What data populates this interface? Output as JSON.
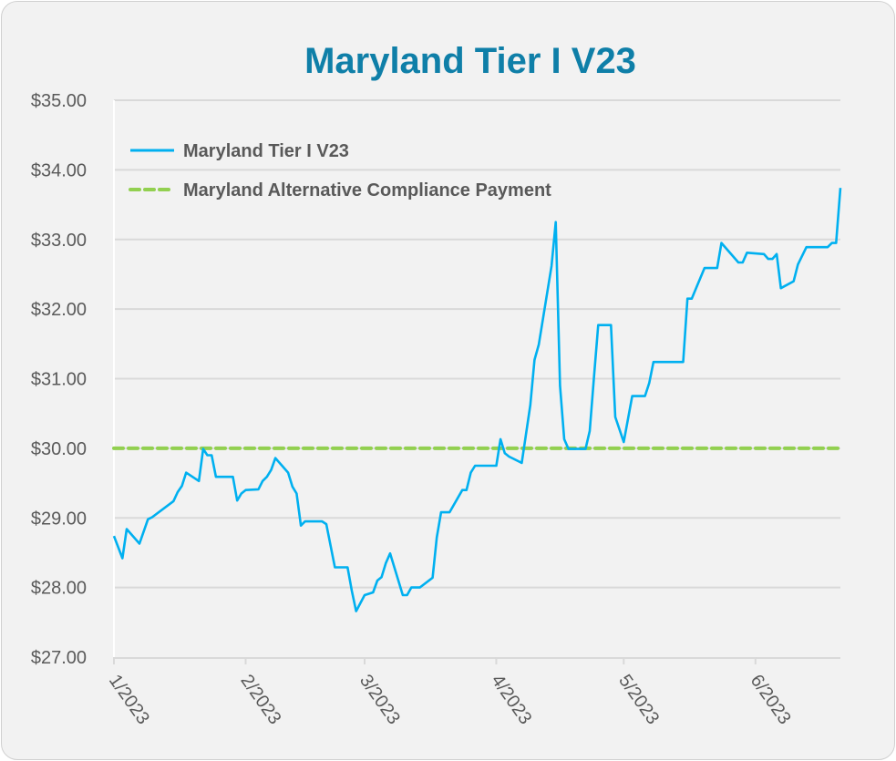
{
  "chart_data": {
    "type": "line",
    "title": "Maryland Tier I V23",
    "xlabel": "",
    "ylabel": "",
    "xlim": [
      "2023-01-01",
      "2023-06-21"
    ],
    "ylim": [
      27,
      35
    ],
    "y_ticks": [
      "$27.00",
      "$28.00",
      "$29.00",
      "$30.00",
      "$31.00",
      "$32.00",
      "$33.00",
      "$34.00",
      "$35.00"
    ],
    "x_ticks": [
      {
        "date": "2023-01-01",
        "label": "1/2023"
      },
      {
        "date": "2023-02-01",
        "label": "2/2023"
      },
      {
        "date": "2023-03-01",
        "label": "3/2023"
      },
      {
        "date": "2023-04-01",
        "label": "4/2023"
      },
      {
        "date": "2023-05-01",
        "label": "5/2023"
      },
      {
        "date": "2023-06-01",
        "label": "6/2023"
      }
    ],
    "grid": "horizontal",
    "legend_position": "top-left",
    "series": [
      {
        "name": "Maryland Tier I V23",
        "color": "#00b0f0",
        "style": "solid",
        "points": [
          [
            "2023-01-01",
            28.74
          ],
          [
            "2023-01-03",
            28.42
          ],
          [
            "2023-01-04",
            28.84
          ],
          [
            "2023-01-07",
            28.63
          ],
          [
            "2023-01-09",
            28.98
          ],
          [
            "2023-01-10",
            29.01
          ],
          [
            "2023-01-15",
            29.24
          ],
          [
            "2023-01-16",
            29.37
          ],
          [
            "2023-01-17",
            29.46
          ],
          [
            "2023-01-18",
            29.65
          ],
          [
            "2023-01-21",
            29.53
          ],
          [
            "2023-01-22",
            29.99
          ],
          [
            "2023-01-23",
            29.9
          ],
          [
            "2023-01-24",
            29.9
          ],
          [
            "2023-01-25",
            29.59
          ],
          [
            "2023-01-29",
            29.59
          ],
          [
            "2023-01-30",
            29.25
          ],
          [
            "2023-01-31",
            29.35
          ],
          [
            "2023-02-01",
            29.4
          ],
          [
            "2023-02-04",
            29.41
          ],
          [
            "2023-02-05",
            29.53
          ],
          [
            "2023-02-06",
            29.59
          ],
          [
            "2023-02-07",
            29.69
          ],
          [
            "2023-02-08",
            29.86
          ],
          [
            "2023-02-11",
            29.65
          ],
          [
            "2023-02-12",
            29.45
          ],
          [
            "2023-02-13",
            29.35
          ],
          [
            "2023-02-14",
            28.89
          ],
          [
            "2023-02-15",
            28.95
          ],
          [
            "2023-02-19",
            28.95
          ],
          [
            "2023-02-20",
            28.91
          ],
          [
            "2023-02-22",
            28.29
          ],
          [
            "2023-02-25",
            28.29
          ],
          [
            "2023-02-26",
            27.95
          ],
          [
            "2023-02-27",
            27.66
          ],
          [
            "2023-03-01",
            27.89
          ],
          [
            "2023-03-03",
            27.93
          ],
          [
            "2023-03-04",
            28.1
          ],
          [
            "2023-03-05",
            28.15
          ],
          [
            "2023-03-06",
            28.35
          ],
          [
            "2023-03-07",
            28.49
          ],
          [
            "2023-03-10",
            27.89
          ],
          [
            "2023-03-11",
            27.89
          ],
          [
            "2023-03-12",
            28.0
          ],
          [
            "2023-03-14",
            28.0
          ],
          [
            "2023-03-17",
            28.14
          ],
          [
            "2023-03-18",
            28.72
          ],
          [
            "2023-03-19",
            29.08
          ],
          [
            "2023-03-21",
            29.08
          ],
          [
            "2023-03-24",
            29.4
          ],
          [
            "2023-03-25",
            29.4
          ],
          [
            "2023-03-26",
            29.65
          ],
          [
            "2023-03-27",
            29.75
          ],
          [
            "2023-04-01",
            29.75
          ],
          [
            "2023-04-02",
            30.13
          ],
          [
            "2023-04-03",
            29.93
          ],
          [
            "2023-04-04",
            29.88
          ],
          [
            "2023-04-07",
            29.79
          ],
          [
            "2023-04-09",
            30.62
          ],
          [
            "2023-04-10",
            31.27
          ],
          [
            "2023-04-11",
            31.49
          ],
          [
            "2023-04-14",
            32.62
          ],
          [
            "2023-04-15",
            33.25
          ],
          [
            "2023-04-16",
            30.9
          ],
          [
            "2023-04-17",
            30.13
          ],
          [
            "2023-04-18",
            29.99
          ],
          [
            "2023-04-22",
            29.99
          ],
          [
            "2023-04-23",
            30.25
          ],
          [
            "2023-04-24",
            31.03
          ],
          [
            "2023-04-25",
            31.77
          ],
          [
            "2023-04-28",
            31.77
          ],
          [
            "2023-04-29",
            30.45
          ],
          [
            "2023-05-01",
            30.09
          ],
          [
            "2023-05-03",
            30.75
          ],
          [
            "2023-05-06",
            30.75
          ],
          [
            "2023-05-07",
            30.94
          ],
          [
            "2023-05-08",
            31.24
          ],
          [
            "2023-05-15",
            31.24
          ],
          [
            "2023-05-16",
            32.15
          ],
          [
            "2023-05-17",
            32.15
          ],
          [
            "2023-05-20",
            32.59
          ],
          [
            "2023-05-23",
            32.59
          ],
          [
            "2023-05-24",
            32.95
          ],
          [
            "2023-05-28",
            32.67
          ],
          [
            "2023-05-29",
            32.67
          ],
          [
            "2023-05-30",
            32.81
          ],
          [
            "2023-06-03",
            32.79
          ],
          [
            "2023-06-04",
            32.72
          ],
          [
            "2023-06-05",
            32.72
          ],
          [
            "2023-06-06",
            32.79
          ],
          [
            "2023-06-07",
            32.3
          ],
          [
            "2023-06-10",
            32.4
          ],
          [
            "2023-06-11",
            32.64
          ],
          [
            "2023-06-13",
            32.89
          ],
          [
            "2023-06-18",
            32.89
          ],
          [
            "2023-06-19",
            32.95
          ],
          [
            "2023-06-20",
            32.95
          ],
          [
            "2023-06-21",
            33.74
          ]
        ]
      },
      {
        "name": "Maryland Alternative Compliance Payment",
        "color": "#92d050",
        "style": "dashed",
        "points": [
          [
            "2023-01-01",
            30.0
          ],
          [
            "2023-06-21",
            30.0
          ]
        ]
      }
    ]
  }
}
